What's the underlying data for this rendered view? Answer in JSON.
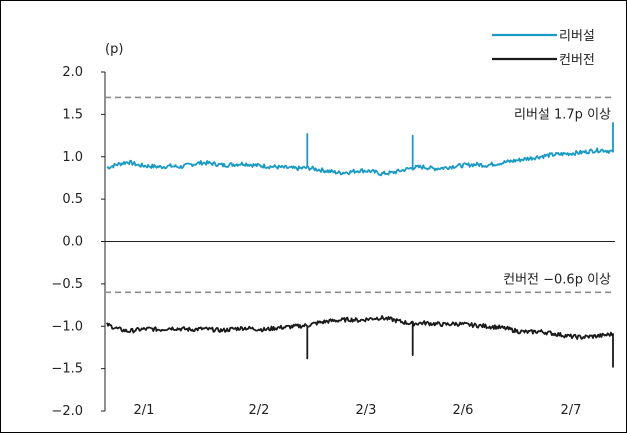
{
  "chart_data": {
    "type": "line",
    "ylabel": "(p)",
    "ylim": [
      -2.0,
      2.0
    ],
    "yticks": [
      2.0,
      1.5,
      1.0,
      0.5,
      0.0,
      -0.5,
      -1.0,
      -1.5,
      -2.0
    ],
    "ytick_labels": [
      "2.0",
      "1.5",
      "1.0",
      "0.5",
      "0.0",
      "−0.5",
      "−1.0",
      "−1.5",
      "−2.0"
    ],
    "categories": [
      "2/1",
      "2/2",
      "2/3",
      "2/6",
      "2/7"
    ],
    "grid": false,
    "legend_position": "top-right",
    "series": [
      {
        "name": "리버설",
        "color": "#1a9bc6",
        "x": [
          0.0,
          0.1,
          0.2,
          0.3,
          0.4,
          0.5,
          0.6,
          0.7,
          0.8,
          0.9,
          1.0,
          1.1,
          1.2,
          1.3,
          1.4,
          1.5,
          1.6,
          1.7,
          1.8,
          1.9,
          2.0,
          2.1,
          2.2,
          2.3,
          2.4,
          2.5,
          2.6,
          2.7,
          2.8,
          2.9,
          3.0,
          3.1,
          3.2,
          3.3,
          3.4,
          3.5,
          3.6,
          3.7,
          3.8,
          3.9,
          4.0,
          4.1,
          4.2,
          4.3,
          4.4,
          4.5,
          4.6,
          4.7,
          4.8
        ],
        "values": [
          0.87,
          0.91,
          0.94,
          0.9,
          0.89,
          0.88,
          0.89,
          0.88,
          0.91,
          0.93,
          0.92,
          0.9,
          0.91,
          0.92,
          0.9,
          0.89,
          0.88,
          0.87,
          0.86,
          0.87,
          0.85,
          0.83,
          0.81,
          0.82,
          0.84,
          0.83,
          0.8,
          0.81,
          0.84,
          0.87,
          0.88,
          0.86,
          0.87,
          0.89,
          0.9,
          0.91,
          0.9,
          0.92,
          0.94,
          0.96,
          0.98,
          1.0,
          1.02,
          1.03,
          1.04,
          1.05,
          1.07,
          1.08,
          1.06
        ],
        "spikes": [
          {
            "x": 1.9,
            "y": 1.27
          },
          {
            "x": 2.9,
            "y": 1.25
          },
          {
            "x": 4.8,
            "y": 1.4
          }
        ],
        "threshold": {
          "value": 1.7,
          "label": "리버설 1.7p 이상"
        }
      },
      {
        "name": "컨버전",
        "color": "#1a1a1a",
        "x": [
          0.0,
          0.1,
          0.2,
          0.3,
          0.4,
          0.5,
          0.6,
          0.7,
          0.8,
          0.9,
          1.0,
          1.1,
          1.2,
          1.3,
          1.4,
          1.5,
          1.6,
          1.7,
          1.8,
          1.9,
          2.0,
          2.1,
          2.2,
          2.3,
          2.4,
          2.5,
          2.6,
          2.7,
          2.8,
          2.9,
          3.0,
          3.1,
          3.2,
          3.3,
          3.4,
          3.5,
          3.6,
          3.7,
          3.8,
          3.9,
          4.0,
          4.1,
          4.2,
          4.3,
          4.4,
          4.5,
          4.6,
          4.7,
          4.8
        ],
        "values": [
          -0.98,
          -1.03,
          -1.06,
          -1.04,
          -1.03,
          -1.04,
          -1.02,
          -1.03,
          -1.04,
          -1.03,
          -1.04,
          -1.05,
          -1.03,
          -1.02,
          -1.03,
          -1.04,
          -1.02,
          -1.01,
          -1.0,
          -0.99,
          -0.96,
          -0.94,
          -0.93,
          -0.92,
          -0.93,
          -0.91,
          -0.9,
          -0.92,
          -0.95,
          -0.97,
          -0.96,
          -0.97,
          -0.98,
          -0.97,
          -0.98,
          -0.99,
          -1.0,
          -1.01,
          -1.03,
          -1.06,
          -1.07,
          -1.06,
          -1.08,
          -1.1,
          -1.12,
          -1.13,
          -1.12,
          -1.11,
          -1.09
        ],
        "spikes": [
          {
            "x": 1.9,
            "y": -1.38
          },
          {
            "x": 2.9,
            "y": -1.34
          },
          {
            "x": 4.8,
            "y": -1.48
          }
        ],
        "threshold": {
          "value": -0.6,
          "label": "컨버전 −0.6p 이상"
        }
      }
    ]
  }
}
